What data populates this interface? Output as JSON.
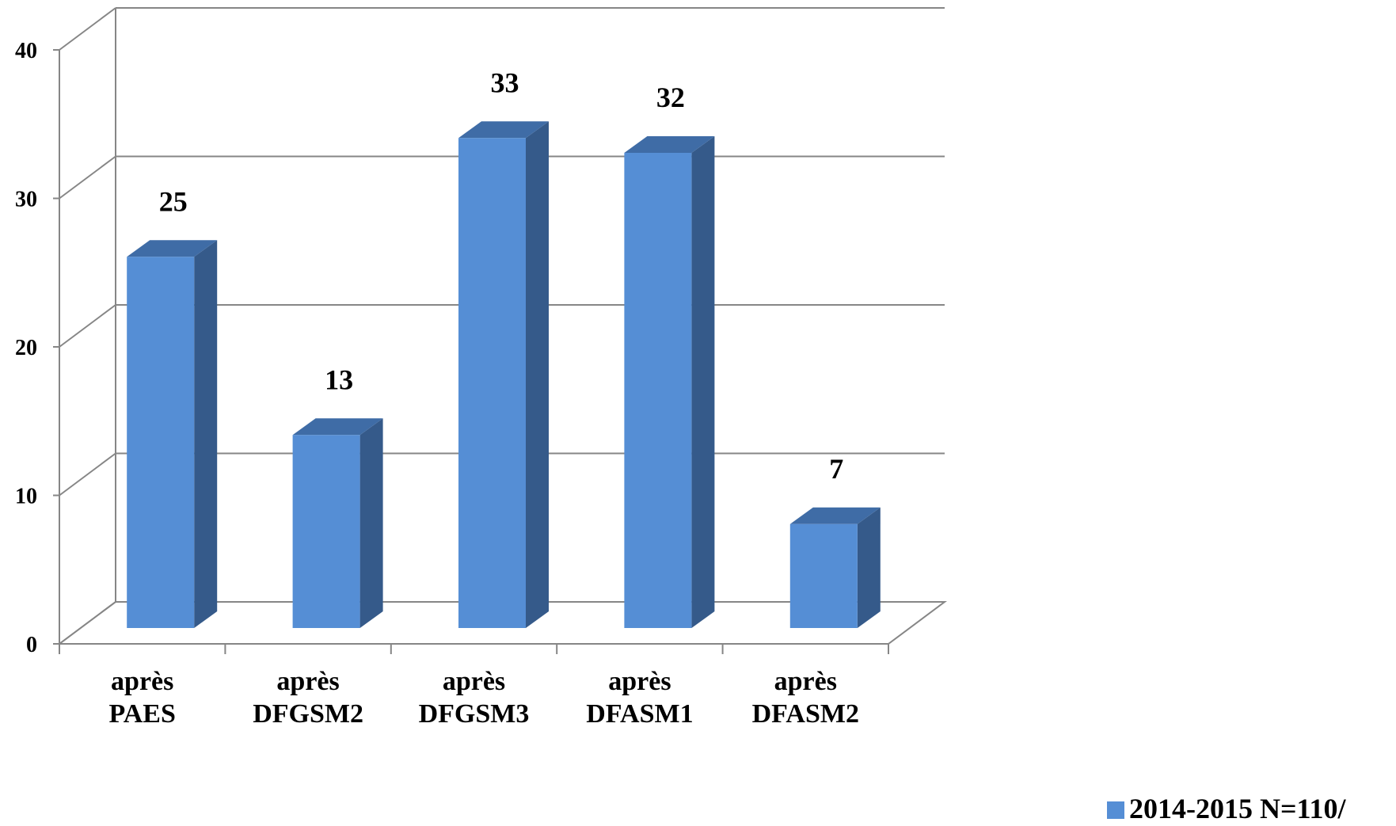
{
  "chart_data": {
    "type": "bar",
    "title": "",
    "xlabel": "",
    "ylabel": "",
    "categories": [
      [
        "après",
        "PAES"
      ],
      [
        "après",
        "DFGSM2"
      ],
      [
        "après",
        "DFGSM3"
      ],
      [
        "après",
        "DFASM1"
      ],
      [
        "après",
        "DFASM2"
      ]
    ],
    "series": [
      {
        "name": "2014-2015  N=110/",
        "values": [
          25,
          13,
          33,
          32,
          7
        ]
      }
    ],
    "data_labels": [
      "25",
      "13",
      "33",
      "32",
      "7"
    ],
    "yticks": [
      "0",
      "10",
      "20",
      "30",
      "40"
    ],
    "ylim": [
      0,
      40
    ],
    "grid": true,
    "style": "3d-column",
    "legend_position": "bottom-right",
    "colors": {
      "bar_front": "#558ED5",
      "bar_side": "#355A8A",
      "bar_top": "#3F6CA6",
      "grid": "#868686"
    }
  }
}
